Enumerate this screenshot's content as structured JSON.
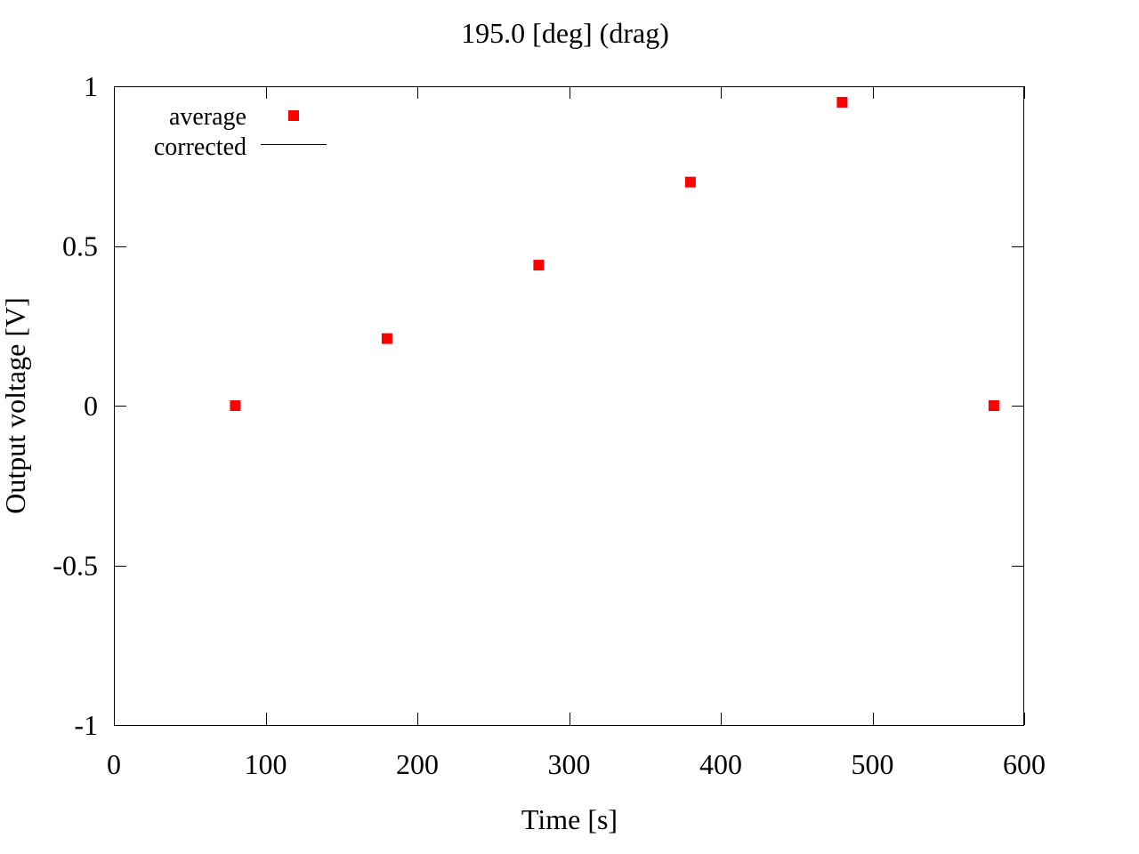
{
  "chart_data": {
    "type": "scatter",
    "title": "195.0 [deg] (drag)",
    "xlabel": "Time [s]",
    "ylabel": "Output voltage [V]",
    "xlim": [
      0,
      600
    ],
    "ylim": [
      -1,
      1
    ],
    "xticks": [
      0,
      100,
      200,
      300,
      400,
      500,
      600
    ],
    "xtick_labels": [
      "0",
      "100",
      "200",
      "300",
      "400",
      "500",
      "600"
    ],
    "yticks": [
      -1,
      -0.5,
      0,
      0.5,
      1
    ],
    "ytick_labels": [
      "-1",
      "-0.5",
      "0",
      "0.5",
      "1"
    ],
    "grid": false,
    "legend_position": "top-left",
    "series": [
      {
        "name": "average",
        "marker": "square",
        "color": "#ff0000",
        "x": [
          80,
          180,
          280,
          380,
          480,
          580
        ],
        "y": [
          0.0,
          0.21,
          0.44,
          0.7,
          0.95,
          0.0
        ]
      },
      {
        "name": "corrected",
        "marker": "line",
        "color": "#000000",
        "x": [],
        "y": []
      }
    ]
  }
}
